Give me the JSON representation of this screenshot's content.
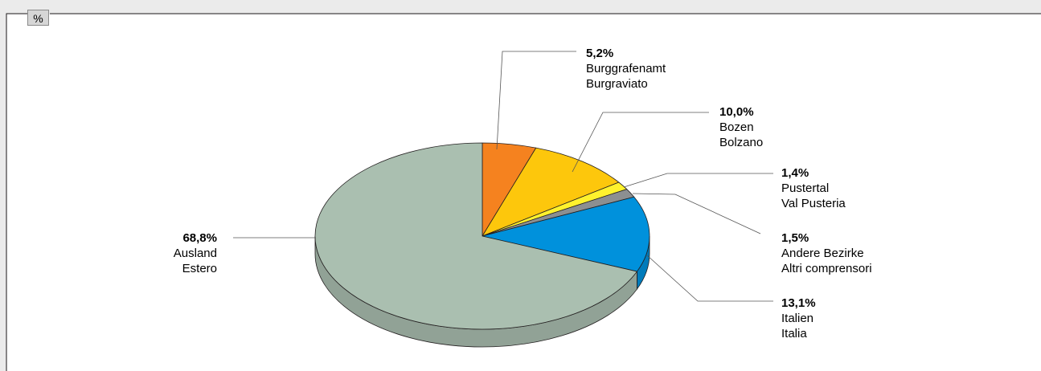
{
  "unit_label": "%",
  "colors": {
    "background": "#ebebeb",
    "panel": "#ffffff",
    "outline": "#231f20"
  },
  "chart_data": {
    "type": "pie",
    "style": "3d",
    "title": "",
    "slices": [
      {
        "value": 5.2,
        "label": "5,2%",
        "name_de": "Burggrafenamt",
        "name_it": "Burgraviato",
        "color": "#f5821f"
      },
      {
        "value": 10.0,
        "label": "10,0%",
        "name_de": "Bozen",
        "name_it": "Bolzano",
        "color": "#fdc70c"
      },
      {
        "value": 1.4,
        "label": "1,4%",
        "name_de": "Pustertal",
        "name_it": "Val Pusteria",
        "color": "#fff22d"
      },
      {
        "value": 1.5,
        "label": "1,5%",
        "name_de": "Andere Bezirke",
        "name_it": "Altri comprensori",
        "color": "#8c8f91"
      },
      {
        "value": 13.1,
        "label": "13,1%",
        "name_de": "Italien",
        "name_it": "Italia",
        "color": "#0091dc"
      },
      {
        "value": 68.8,
        "label": "68,8%",
        "name_de": "Ausland",
        "name_it": "Estero",
        "color": "#aabfb0"
      }
    ]
  }
}
